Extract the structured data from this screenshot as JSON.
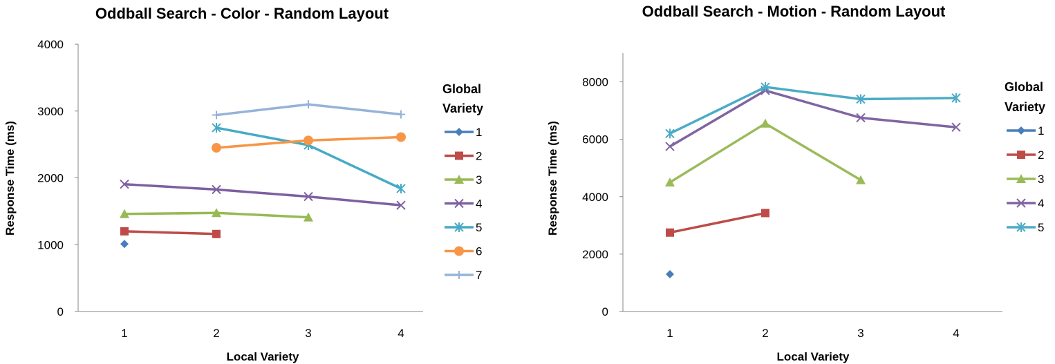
{
  "chart_data": [
    {
      "type": "line",
      "title": "Oddball Search - Color - Random Layout",
      "xlabel": "Local Variety",
      "ylabel": "Response Time (ms)",
      "categories": [
        1,
        2,
        3,
        4
      ],
      "ylim": [
        0,
        4000
      ],
      "yticks": [
        0,
        1000,
        2000,
        3000,
        4000
      ],
      "grid": false,
      "legend": {
        "title": [
          "Global",
          "Variety"
        ],
        "placement": "right"
      },
      "series": [
        {
          "name": "1",
          "values": [
            1010,
            null,
            null,
            null
          ],
          "color": "#4A7EBB",
          "marker": "diamond"
        },
        {
          "name": "2",
          "values": [
            1200,
            1160,
            null,
            null
          ],
          "color": "#BE4B48",
          "marker": "square"
        },
        {
          "name": "3",
          "values": [
            1460,
            1475,
            1410,
            null
          ],
          "color": "#98B954",
          "marker": "triangle"
        },
        {
          "name": "4",
          "values": [
            1905,
            1825,
            1720,
            1590
          ],
          "color": "#7D60A0",
          "marker": "x"
        },
        {
          "name": "5",
          "values": [
            null,
            2750,
            2490,
            1840
          ],
          "color": "#46AAC5",
          "marker": "star"
        },
        {
          "name": "6",
          "values": [
            null,
            2450,
            2560,
            2610
          ],
          "color": "#F79646",
          "marker": "circle"
        },
        {
          "name": "7",
          "values": [
            null,
            2940,
            3100,
            2950
          ],
          "color": "#95B3D7",
          "marker": "plus"
        }
      ]
    },
    {
      "type": "line",
      "title": "Oddball Search - Motion - Random Layout",
      "xlabel": "Local Variety",
      "ylabel": "Response Time (ms)",
      "categories": [
        1,
        2,
        3,
        4
      ],
      "ylim": [
        0,
        9000
      ],
      "yticks": [
        0,
        2000,
        4000,
        6000,
        8000
      ],
      "grid": false,
      "legend": {
        "title": [
          "Global",
          "Variety"
        ],
        "placement": "right"
      },
      "series": [
        {
          "name": "1",
          "values": [
            1300,
            null,
            null,
            null
          ],
          "color": "#4A7EBB",
          "marker": "diamond"
        },
        {
          "name": "2",
          "values": [
            2750,
            3430,
            null,
            null
          ],
          "color": "#BE4B48",
          "marker": "square"
        },
        {
          "name": "3",
          "values": [
            4500,
            6550,
            4580,
            null
          ],
          "color": "#9BBB59",
          "marker": "triangle"
        },
        {
          "name": "4",
          "values": [
            5750,
            7700,
            6750,
            6420
          ],
          "color": "#8064A2",
          "marker": "x"
        },
        {
          "name": "5",
          "values": [
            6200,
            7820,
            7400,
            7440
          ],
          "color": "#4BACC6",
          "marker": "star"
        }
      ]
    }
  ]
}
